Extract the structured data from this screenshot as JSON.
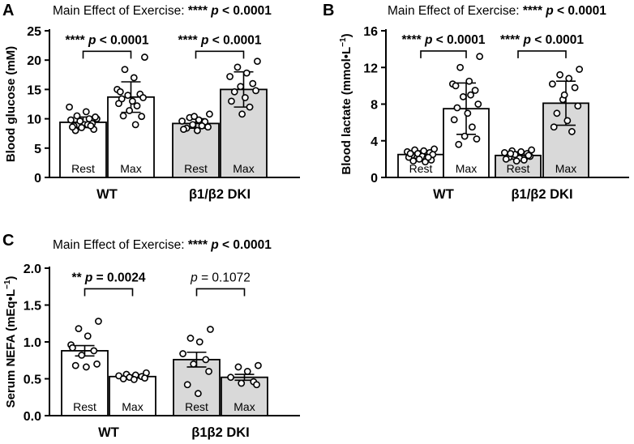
{
  "figure": {
    "group_width_hint": ""
  },
  "chart_data": [
    {
      "panel_id": "A",
      "type": "bar",
      "title": "Main Effect of Exercise: ",
      "title_stars": "****",
      "title_p": "p < 0.0001",
      "ylabel": "Blood glucose (mM)",
      "ylim": [
        0,
        25
      ],
      "yticks": [
        0,
        5,
        10,
        15,
        20,
        25
      ],
      "ytick_labels": [
        "0",
        "5",
        "10",
        "15",
        "20",
        "25"
      ],
      "categories": [
        "WT",
        "β1/β2 DKI"
      ],
      "bar_labels": [
        "Rest",
        "Max"
      ],
      "colors": {
        "rest": "#ffffff",
        "max": "#ffffff",
        "dki_rest": "#d9d9d9",
        "dki_max": "#d9d9d9"
      },
      "bars": [
        {
          "group": "WT",
          "label": "Rest",
          "mean": 9.4,
          "sd": 0.9,
          "fill": "#ffffff",
          "points": [
            10.0,
            10.5,
            11.2,
            12.0,
            9.2,
            9.6,
            10.3,
            8.8,
            9.0,
            9.8,
            10.0,
            8.5,
            8.2,
            8.0,
            9.0,
            8.6,
            8.8
          ]
        },
        {
          "group": "WT",
          "label": "Max",
          "mean": 13.7,
          "sd": 2.6,
          "fill": "#ffffff",
          "points": [
            20.5,
            18.4,
            17.0,
            15.0,
            14.2,
            14.0,
            13.6,
            13.4,
            13.0,
            12.6,
            12.2,
            11.4,
            10.4,
            10.5,
            9.0,
            14.6
          ]
        },
        {
          "group": "β1/β2 DKI",
          "label": "Rest",
          "mean": 9.2,
          "sd": 0.8,
          "fill": "#d9d9d9",
          "points": [
            10.8,
            10.2,
            9.8,
            9.6,
            9.5,
            9.0,
            8.6,
            8.4,
            8.0,
            8.2,
            8.8,
            10.4
          ]
        },
        {
          "group": "β1/β2 DKI",
          "label": "Max",
          "mean": 15.0,
          "sd": 3.0,
          "fill": "#d9d9d9",
          "points": [
            19.8,
            18.8,
            17.8,
            17.2,
            16.0,
            15.5,
            14.8,
            14.6,
            13.6,
            13.0,
            12.0,
            10.8
          ]
        }
      ],
      "comparisons": [
        {
          "group": "WT",
          "stars": "****",
          "p": "p < 0.0001",
          "bold": true,
          "y": 21.5
        },
        {
          "group": "β1/β2 DKI",
          "stars": "****",
          "p": "p < 0.0001",
          "bold": true,
          "y": 21.5
        }
      ]
    },
    {
      "panel_id": "B",
      "type": "bar",
      "title": "Main Effect of Exercise: ",
      "title_stars": "****",
      "title_p": "p < 0.0001",
      "ylabel": "Blood lactate (mmol•L",
      "ylabel_sup": "−1",
      "ylabel_end": ")",
      "ylim": [
        0,
        16
      ],
      "yticks": [
        0,
        4,
        8,
        12,
        16
      ],
      "ytick_labels": [
        "0",
        "4",
        "8",
        "12",
        "16"
      ],
      "categories": [
        "WT",
        "β1/β2 DKI"
      ],
      "bar_labels": [
        "Rest",
        "Max"
      ],
      "bars": [
        {
          "group": "WT",
          "label": "Rest",
          "mean": 2.5,
          "sd": 0.4,
          "fill": "#ffffff",
          "points": [
            3.1,
            3.0,
            2.9,
            2.8,
            2.7,
            2.6,
            2.5,
            2.4,
            2.3,
            2.2,
            2.1,
            2.0,
            1.9,
            1.8,
            1.7,
            2.6,
            2.2
          ]
        },
        {
          "group": "WT",
          "label": "Max",
          "mean": 7.5,
          "sd": 2.8,
          "fill": "#ffffff",
          "points": [
            13.2,
            12.0,
            10.5,
            10.2,
            9.5,
            8.8,
            8.0,
            7.6,
            7.0,
            6.3,
            5.5,
            4.5,
            4.2,
            3.6,
            9.0,
            10.0
          ]
        },
        {
          "group": "β1/β2 DKI",
          "label": "Rest",
          "mean": 2.4,
          "sd": 0.4,
          "fill": "#d9d9d9",
          "points": [
            3.0,
            2.9,
            2.8,
            2.7,
            2.6,
            2.5,
            2.3,
            2.2,
            2.1,
            2.0,
            1.9,
            1.8,
            2.4,
            2.6
          ]
        },
        {
          "group": "β1/β2 DKI",
          "label": "Max",
          "mean": 8.1,
          "sd": 2.4,
          "fill": "#d9d9d9",
          "points": [
            11.8,
            11.2,
            10.8,
            10.2,
            9.8,
            8.5,
            7.8,
            7.0,
            6.2,
            5.5,
            5.0,
            9.0
          ]
        }
      ],
      "comparisons": [
        {
          "group": "WT",
          "stars": "****",
          "p": "p < 0.0001",
          "bold": true,
          "y": 13.8
        },
        {
          "group": "β1/β2 DKI",
          "stars": "****",
          "p": "p < 0.0001",
          "bold": true,
          "y": 13.8
        }
      ]
    },
    {
      "panel_id": "C",
      "type": "bar",
      "title": "Main Effect of Exercise: ",
      "title_stars": "****",
      "title_p": "p < 0.0001",
      "ylabel": "Serum NEFA (mEq•L",
      "ylabel_sup": "−1",
      "ylabel_end": ")",
      "ylim": [
        0,
        2.0
      ],
      "yticks": [
        0.0,
        0.5,
        1.0,
        1.5,
        2.0
      ],
      "ytick_labels": [
        "0.0",
        "0.5",
        "1.0",
        "1.5",
        "2.0"
      ],
      "categories": [
        "WT",
        "β1β2 DKI"
      ],
      "bar_labels": [
        "Rest",
        "Max"
      ],
      "bars": [
        {
          "group": "WT",
          "label": "Rest",
          "mean": 0.88,
          "sd": 0.07,
          "fill": "#ffffff",
          "points": [
            1.28,
            1.18,
            1.08,
            0.96,
            0.88,
            0.82,
            0.7,
            0.68,
            0.66,
            0.92
          ]
        },
        {
          "group": "WT",
          "label": "Max",
          "mean": 0.53,
          "sd": 0.02,
          "fill": "#ffffff",
          "points": [
            0.58,
            0.56,
            0.55,
            0.54,
            0.53,
            0.52,
            0.51,
            0.5,
            0.49
          ]
        },
        {
          "group": "β1β2 DKI",
          "label": "Rest",
          "mean": 0.76,
          "sd": 0.1,
          "fill": "#d9d9d9",
          "points": [
            1.17,
            1.05,
            1.0,
            0.84,
            0.76,
            0.7,
            0.6,
            0.42,
            0.3
          ]
        },
        {
          "group": "β1β2 DKI",
          "label": "Max",
          "mean": 0.52,
          "sd": 0.04,
          "fill": "#d9d9d9",
          "points": [
            0.68,
            0.66,
            0.6,
            0.52,
            0.46,
            0.44,
            0.42
          ]
        }
      ],
      "comparisons": [
        {
          "group": "WT",
          "stars": "**",
          "p": "p = 0.0024",
          "bold": true,
          "y": 1.72
        },
        {
          "group": "β1β2 DKI",
          "stars": "",
          "p": "p = 0.1072",
          "bold": false,
          "y": 1.72
        }
      ]
    }
  ]
}
